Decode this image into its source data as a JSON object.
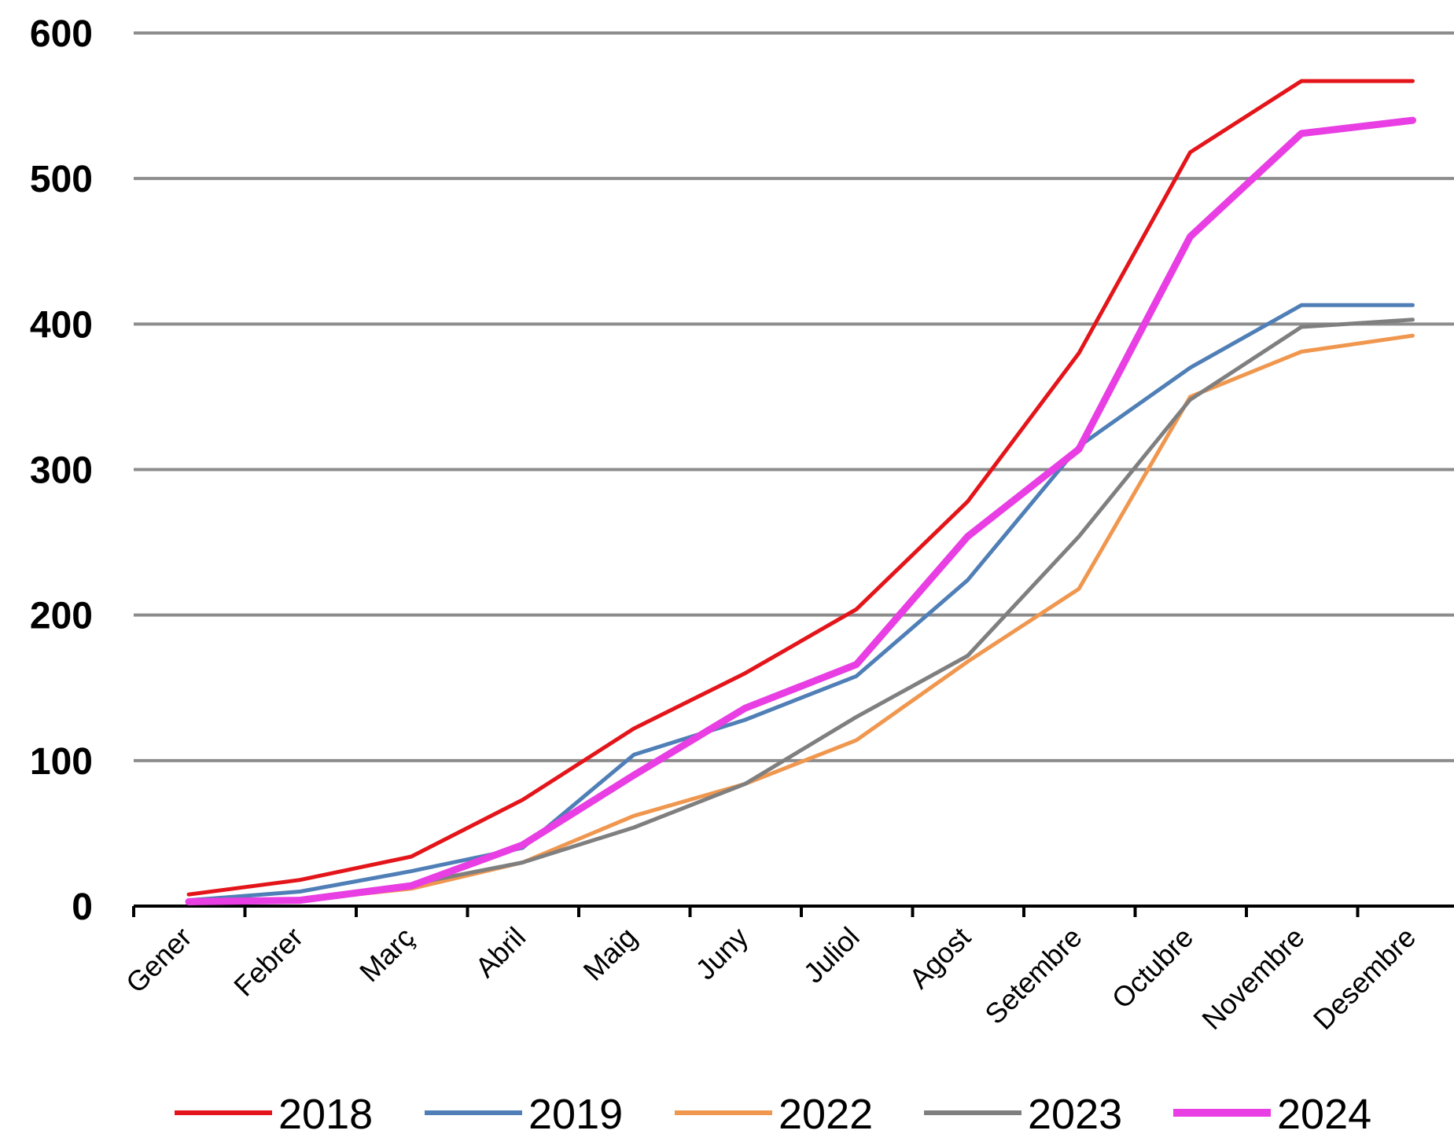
{
  "chart_data": {
    "type": "line",
    "title": "",
    "xlabel": "",
    "ylabel": "",
    "categories": [
      "Gener",
      "Febrer",
      "Març",
      "Abril",
      "Maig",
      "Juny",
      "Juliol",
      "Agost",
      "Setembre",
      "Octubre",
      "Novembre",
      "Desembre"
    ],
    "ylim": [
      0,
      600
    ],
    "yticks": [
      0,
      100,
      200,
      300,
      400,
      500,
      600
    ],
    "grid": "horizontal",
    "legend_position": "bottom",
    "series": [
      {
        "name": "2018",
        "color": "#e3151a",
        "values": [
          8,
          18,
          34,
          73,
          122,
          160,
          204,
          278,
          380,
          518,
          567,
          567
        ]
      },
      {
        "name": "2019",
        "color": "#4f7fb6",
        "values": [
          4,
          10,
          24,
          40,
          104,
          128,
          158,
          224,
          316,
          370,
          413,
          413
        ]
      },
      {
        "name": "2022",
        "color": "#f0974f",
        "values": [
          2,
          4,
          12,
          30,
          62,
          84,
          114,
          168,
          218,
          350,
          381,
          392
        ]
      },
      {
        "name": "2023",
        "color": "#7f7f7f",
        "values": [
          2,
          5,
          15,
          30,
          54,
          84,
          130,
          172,
          254,
          348,
          398,
          403
        ]
      },
      {
        "name": "2024",
        "color": "#e83ee3",
        "values": [
          3,
          4,
          14,
          42,
          90,
          136,
          166,
          254,
          314,
          460,
          531,
          540
        ]
      }
    ]
  }
}
